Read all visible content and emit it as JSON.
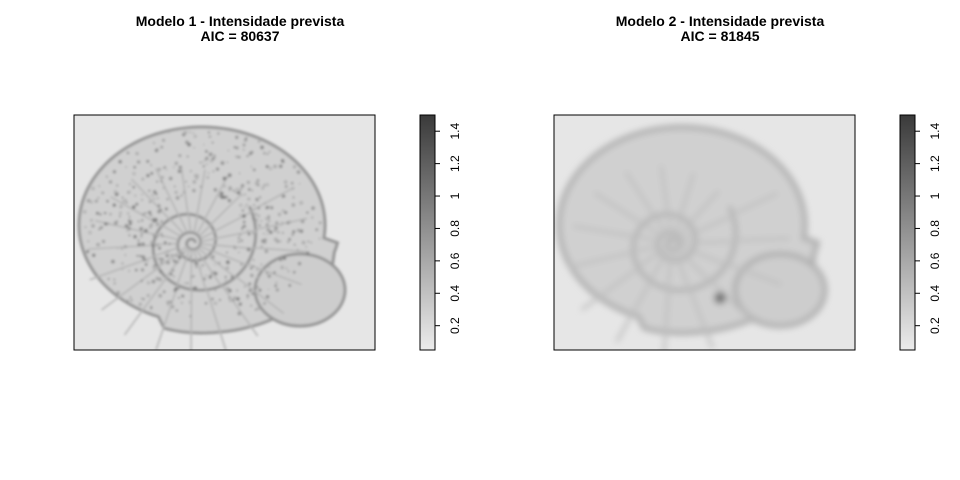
{
  "chart_data": [
    {
      "type": "heatmap",
      "title": "Modelo 1 - Intensidade prevista",
      "subtitle": "AIC = 80637",
      "xlabel": "",
      "ylabel": "",
      "colorbar": {
        "ticks": [
          "0.2",
          "0.4",
          "0.6",
          "0.8",
          "1",
          "1.2",
          "1.4"
        ],
        "tick_values": [
          0.2,
          0.4,
          0.6,
          0.8,
          1.0,
          1.2,
          1.4
        ],
        "range": [
          0.05,
          1.5
        ],
        "orientation": "vertical",
        "tick_label_rotation": "90"
      },
      "palette": {
        "low": "#e6e6e6",
        "high": "#3a3a3a"
      },
      "background_intensity": 0.1,
      "pattern": "snail-shell spiral intensity field",
      "style": "detailed",
      "grid": false
    },
    {
      "type": "heatmap",
      "title": "Modelo 2 - Intensidade prevista",
      "subtitle": "AIC = 81845",
      "xlabel": "",
      "ylabel": "",
      "colorbar": {
        "ticks": [
          "0.2",
          "0.4",
          "0.6",
          "0.8",
          "1",
          "1.2",
          "1.4"
        ],
        "tick_values": [
          0.2,
          0.4,
          0.6,
          0.8,
          1.0,
          1.2,
          1.4
        ],
        "range": [
          0.05,
          1.5
        ],
        "orientation": "vertical",
        "tick_label_rotation": "90"
      },
      "palette": {
        "low": "#e6e6e6",
        "high": "#3a3a3a"
      },
      "background_intensity": 0.1,
      "pattern": "snail-shell spiral intensity field",
      "style": "smoothed",
      "grid": false
    }
  ]
}
